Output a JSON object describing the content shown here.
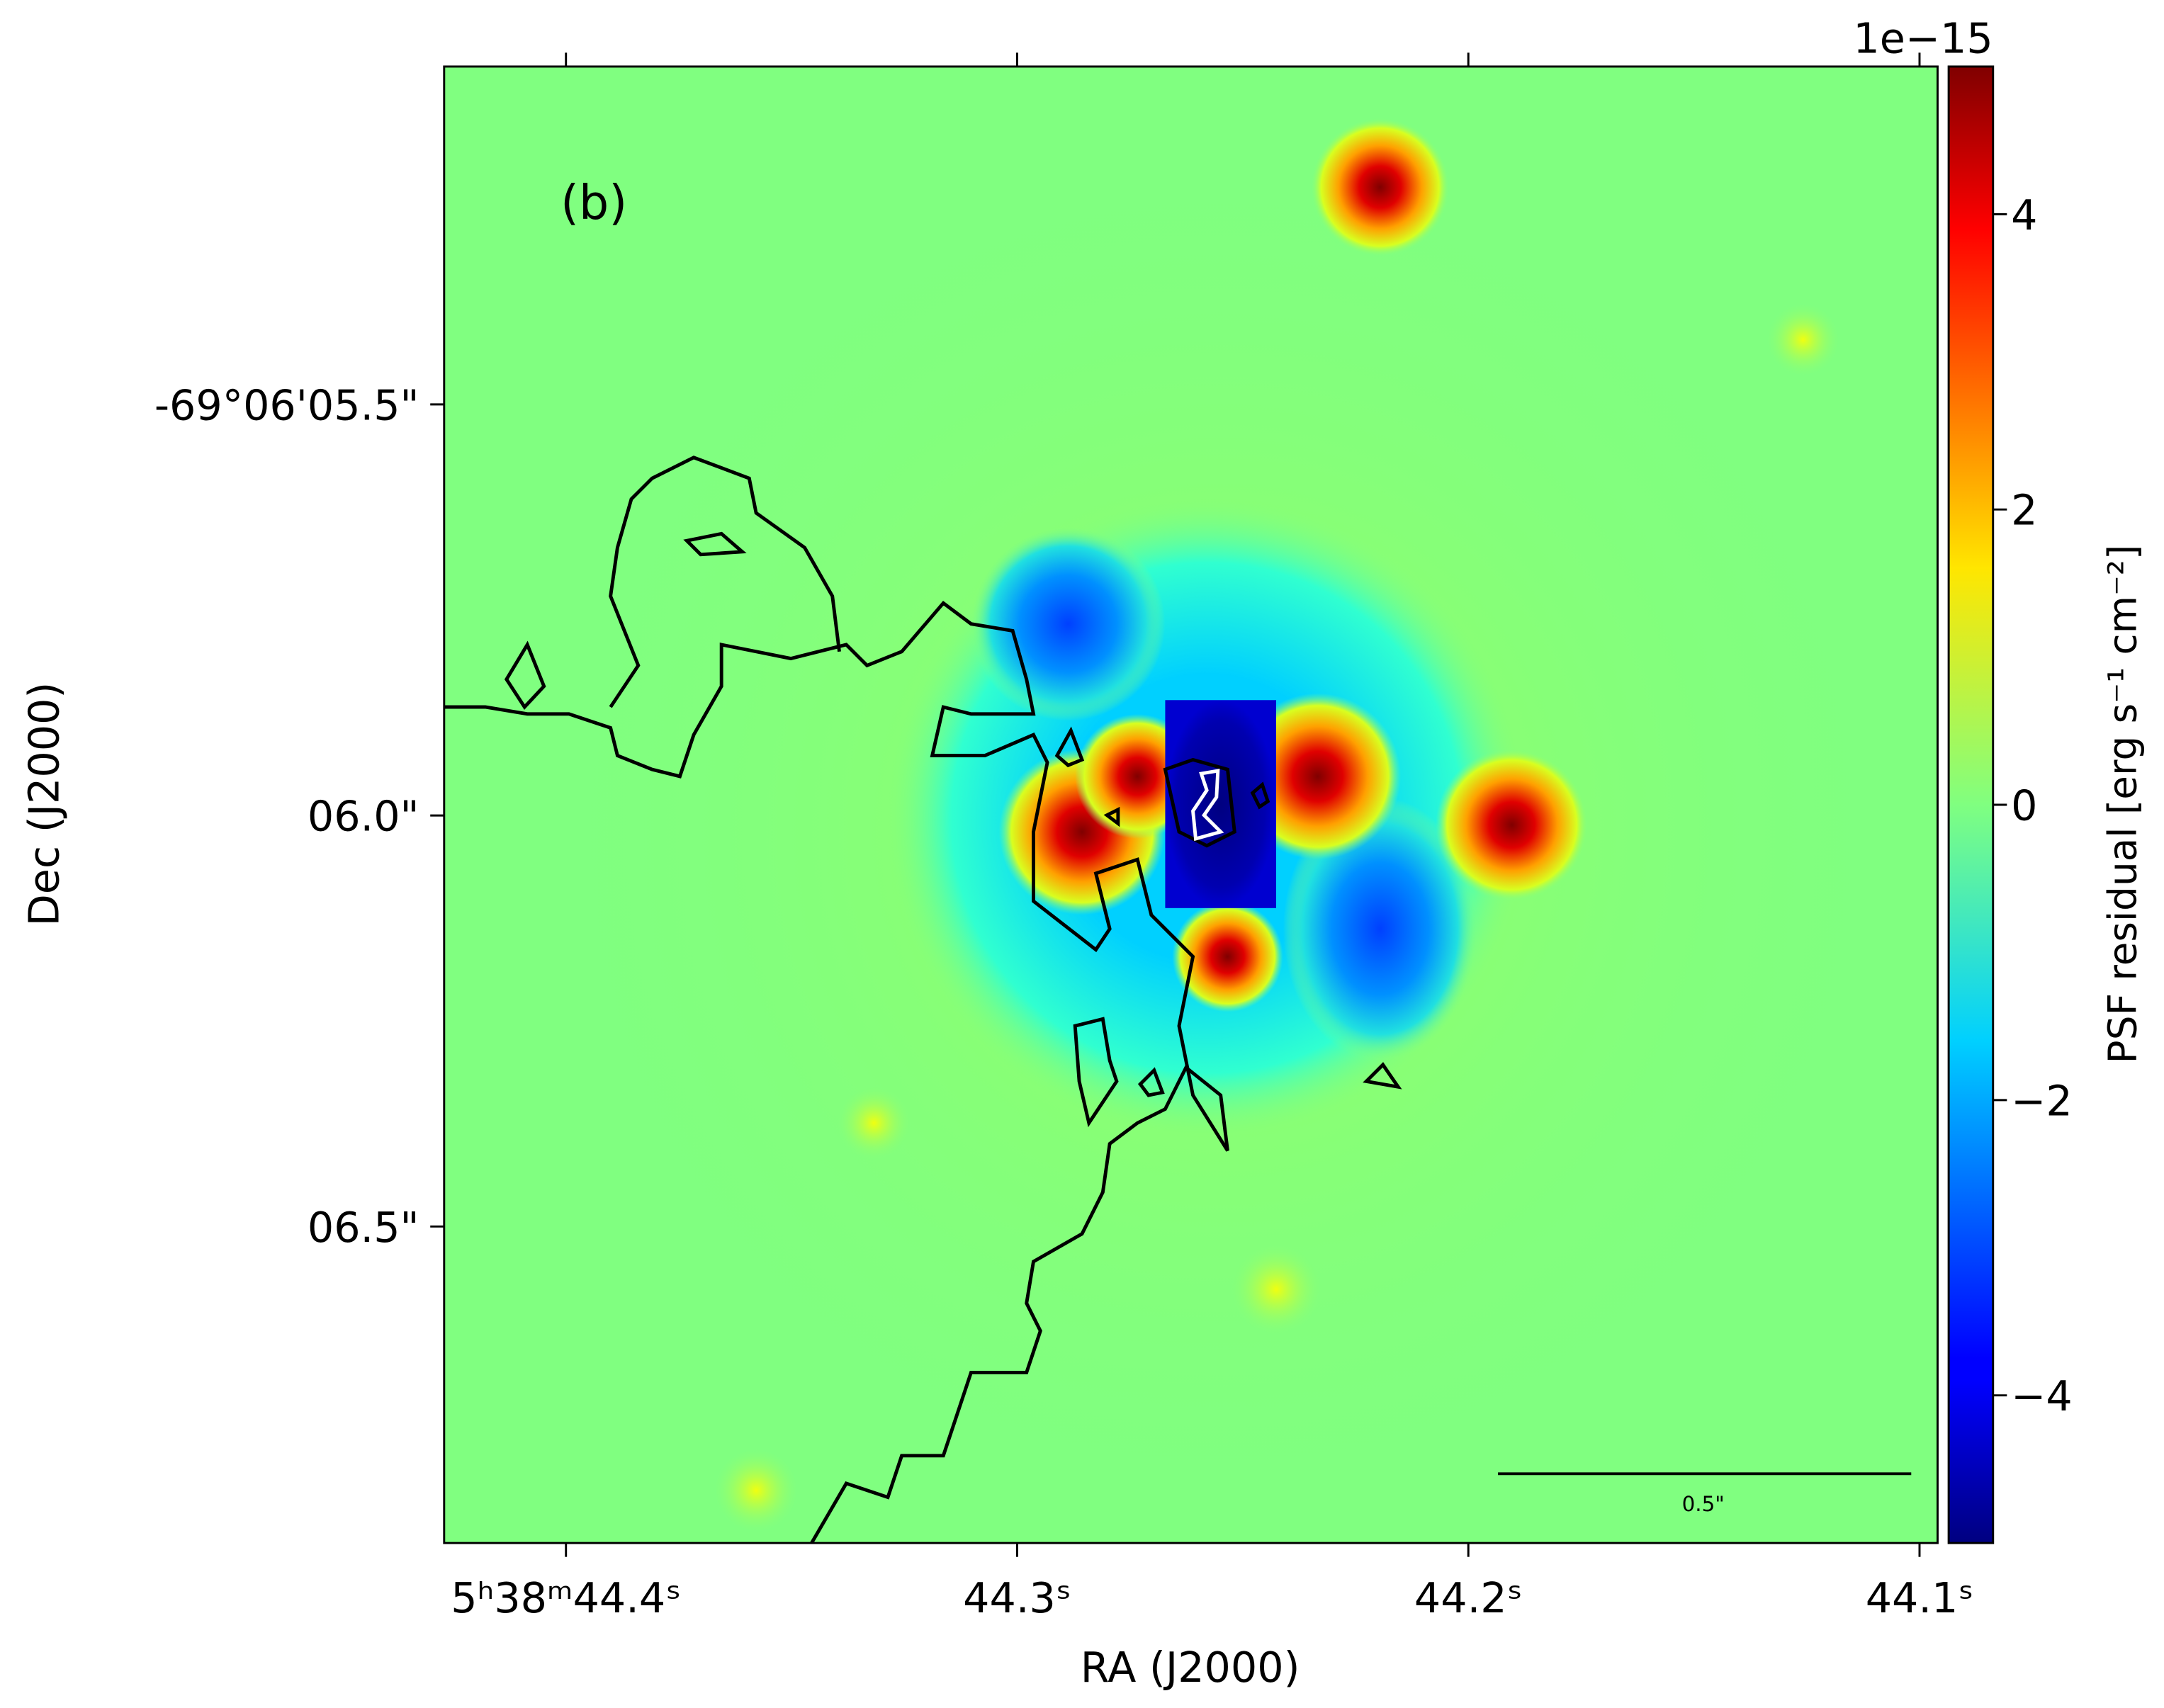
{
  "chart_data": {
    "type": "image",
    "annotation": "(b)",
    "x_label": "RA (J2000)",
    "y_label": "Dec (J2000)",
    "xlim": [
      44.427,
      44.096
    ],
    "xticks": [
      {
        "value": 44.4,
        "label": "5ʰ38ᵐ44.4ˢ"
      },
      {
        "value": 44.3,
        "label": "44.3ˢ"
      },
      {
        "value": 44.2,
        "label": "44.2ˢ"
      },
      {
        "value": 44.1,
        "label": "44.1ˢ"
      }
    ],
    "ylim": [
      5.089,
      6.885
    ],
    "yticks": [
      {
        "value": 5.5,
        "label": "-69°06'05.5\""
      },
      {
        "value": 6.0,
        "label": "06.0\""
      },
      {
        "value": 6.5,
        "label": "06.5\""
      }
    ],
    "colorbar": {
      "label": "PSF residual [erg s⁻¹ cm⁻²]",
      "offset_label": "1e−15",
      "colormap": "jet",
      "lim": [
        -5,
        5
      ],
      "ticks": [
        {
          "value": -4,
          "label": "−4"
        },
        {
          "value": -2,
          "label": "−2"
        },
        0,
        2,
        4
      ]
    },
    "scale_bar": {
      "label": "0.5\""
    }
  }
}
